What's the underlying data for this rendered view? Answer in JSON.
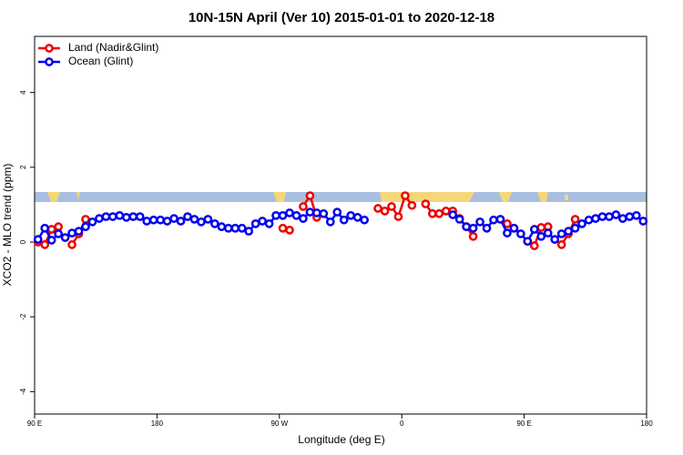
{
  "chart_data": {
    "type": "line",
    "title": "10N-15N April (Ver 10)   2015-01-01 to 2020-12-18",
    "x_label": "Longitude (deg E)",
    "y_label": "XCO2 - MLO trend (ppm)",
    "xlim": [
      90,
      540
    ],
    "xticks": [
      {
        "value": 90,
        "label": "90 E"
      },
      180,
      {
        "value": 270,
        "label": "90 W"
      },
      {
        "value": 360,
        "label": "0"
      },
      {
        "value": 450,
        "label": "90 E"
      },
      {
        "value": 540,
        "label": "180"
      }
    ],
    "ylim": [
      -4.6,
      5.5
    ],
    "yticks": [
      -4,
      -2,
      0,
      2,
      4
    ],
    "legend": "topleft",
    "x": [
      92.5,
      97.5,
      102.5,
      107.5,
      112.5,
      117.5,
      122.5,
      127.5,
      132.5,
      137.5,
      142.5,
      147.5,
      152.5,
      157.5,
      162.5,
      167.5,
      172.5,
      177.5,
      182.5,
      187.5,
      192.5,
      197.5,
      202.5,
      207.5,
      212.5,
      217.5,
      222.5,
      227.5,
      232.5,
      237.5,
      242.5,
      247.5,
      252.5,
      257.5,
      262.5,
      267.5,
      272.5,
      277.5,
      282.5,
      287.5,
      292.5,
      297.5,
      302.5,
      307.5,
      312.5,
      317.5,
      322.5,
      327.5,
      332.5,
      337.5,
      342.5,
      347.5,
      352.5,
      357.5,
      362.5,
      367.5,
      372.5,
      377.5,
      382.5,
      387.5,
      392.5,
      397.5,
      402.5,
      407.5,
      412.5,
      417.5,
      422.5,
      427.5,
      432.5,
      437.5,
      442.5,
      447.5,
      452.5,
      457.5,
      462.5,
      467.5,
      472.5,
      477.5,
      482.5,
      487.5,
      492.5,
      497.5,
      502.5,
      507.5,
      512.5,
      517.5,
      522.5,
      527.5,
      532.5,
      537.5
    ],
    "series": [
      {
        "name": "Land (Nadir&Glint)",
        "color": "#ee0000",
        "values": [
          0.0,
          -0.07,
          0.34,
          0.41,
          null,
          -0.07,
          0.22,
          0.61,
          null,
          null,
          null,
          null,
          null,
          null,
          null,
          null,
          null,
          null,
          null,
          null,
          null,
          null,
          null,
          null,
          null,
          null,
          null,
          null,
          null,
          null,
          null,
          null,
          null,
          null,
          null,
          null,
          0.37,
          0.32,
          null,
          0.95,
          1.24,
          0.66,
          null,
          null,
          null,
          null,
          null,
          null,
          null,
          null,
          0.9,
          0.83,
          0.95,
          0.68,
          1.24,
          0.98,
          null,
          1.02,
          0.76,
          0.76,
          0.83,
          0.83,
          0.63,
          0.41,
          0.15,
          null,
          null,
          null,
          null,
          0.49,
          0.37,
          null,
          0.02,
          -0.1,
          0.39,
          0.41,
          null,
          -0.07,
          0.22,
          0.61,
          null,
          null,
          null,
          null,
          null,
          null,
          null,
          null,
          null,
          null
        ]
      },
      {
        "name": "Ocean (Glint)",
        "color": "#0000ee",
        "values": [
          0.07,
          0.37,
          0.05,
          0.22,
          0.12,
          0.24,
          0.29,
          0.41,
          0.54,
          0.63,
          0.68,
          0.68,
          0.71,
          0.66,
          0.68,
          0.68,
          0.56,
          0.59,
          0.59,
          0.56,
          0.63,
          0.56,
          0.68,
          0.61,
          0.54,
          0.61,
          0.49,
          0.41,
          0.37,
          0.37,
          0.37,
          0.29,
          0.49,
          0.56,
          0.49,
          0.71,
          0.71,
          0.78,
          0.71,
          0.63,
          0.8,
          0.78,
          0.76,
          0.54,
          0.8,
          0.59,
          0.71,
          0.66,
          0.59,
          null,
          null,
          null,
          null,
          null,
          null,
          null,
          null,
          null,
          null,
          null,
          null,
          0.73,
          0.61,
          0.41,
          0.37,
          0.54,
          0.37,
          0.59,
          0.61,
          0.24,
          0.37,
          0.22,
          0.02,
          0.34,
          0.15,
          0.24,
          0.07,
          0.22,
          0.29,
          0.37,
          0.49,
          0.59,
          0.63,
          0.68,
          0.68,
          0.73,
          0.63,
          0.68,
          0.71,
          0.56
        ]
      }
    ]
  }
}
